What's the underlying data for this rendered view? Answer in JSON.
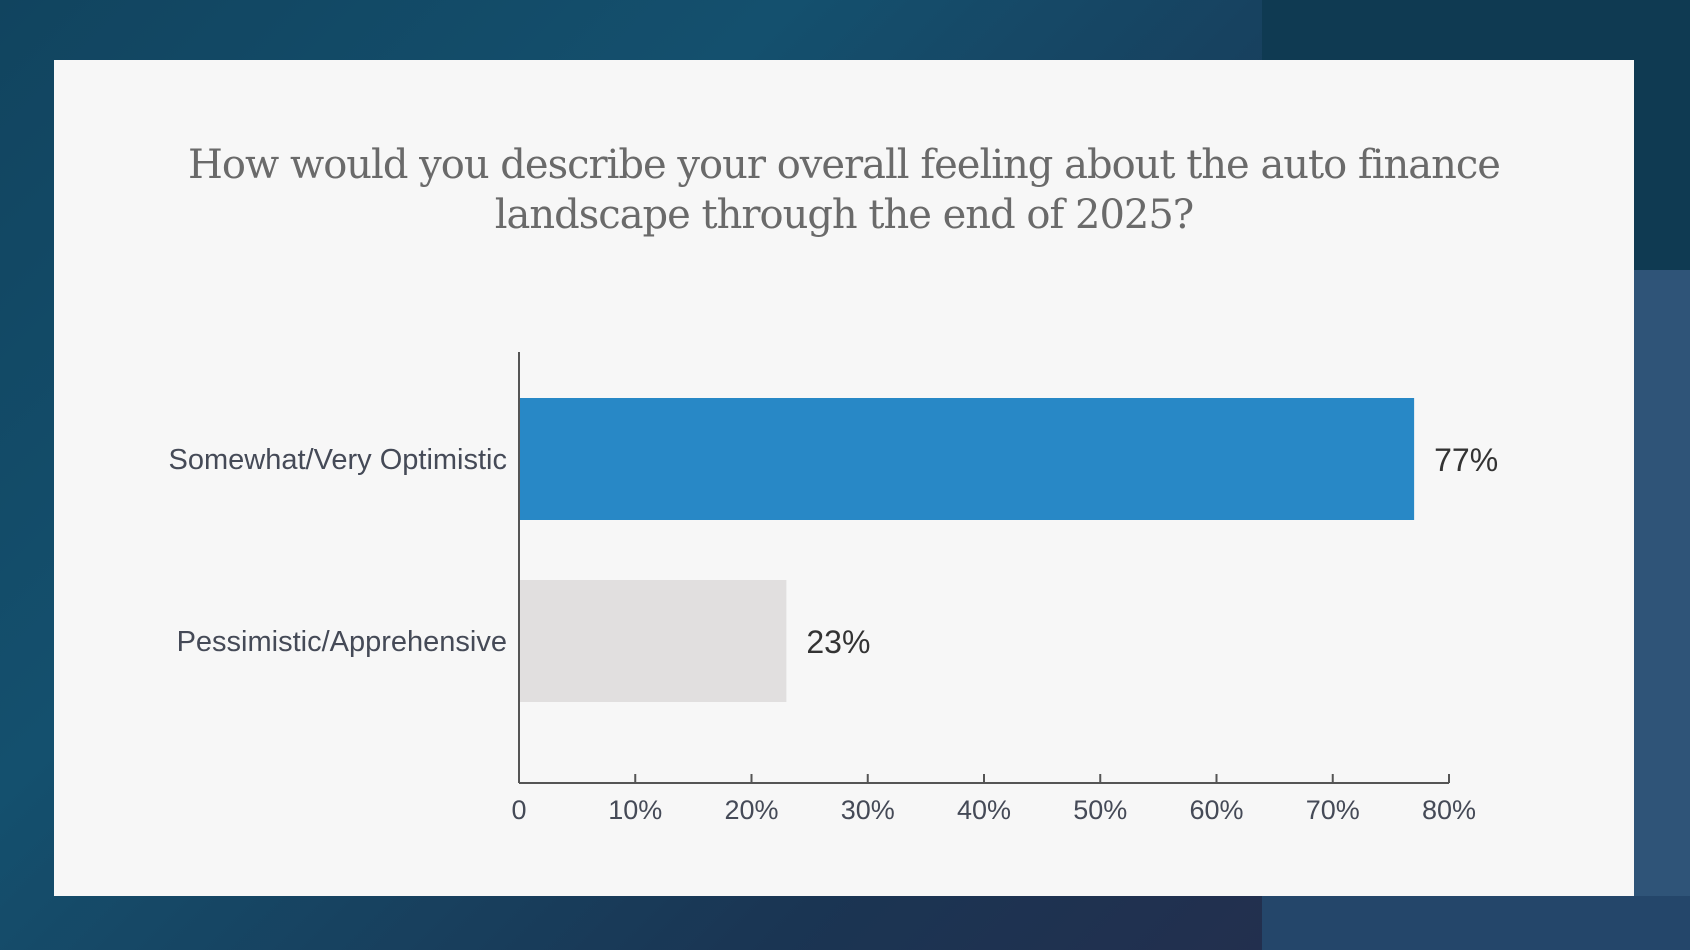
{
  "chart_data": {
    "type": "bar",
    "orientation": "horizontal",
    "title": "How would you describe your overall feeling about the auto finance\nlandscape through the end of 2025?",
    "categories": [
      "Somewhat/Very Optimistic",
      "Pessimistic/Apprehensive"
    ],
    "values": [
      77,
      23
    ],
    "value_labels": [
      "77%",
      "23%"
    ],
    "bar_colors": [
      "#2888c6",
      "#e1dfdf"
    ],
    "xlim": [
      0,
      80
    ],
    "xticks": [
      0,
      10,
      20,
      30,
      40,
      50,
      60,
      70,
      80
    ],
    "xtick_labels": [
      "0",
      "10%",
      "20%",
      "30%",
      "40%",
      "50%",
      "60%",
      "70%",
      "80%"
    ],
    "xlabel": "",
    "ylabel": "",
    "grid": false
  }
}
